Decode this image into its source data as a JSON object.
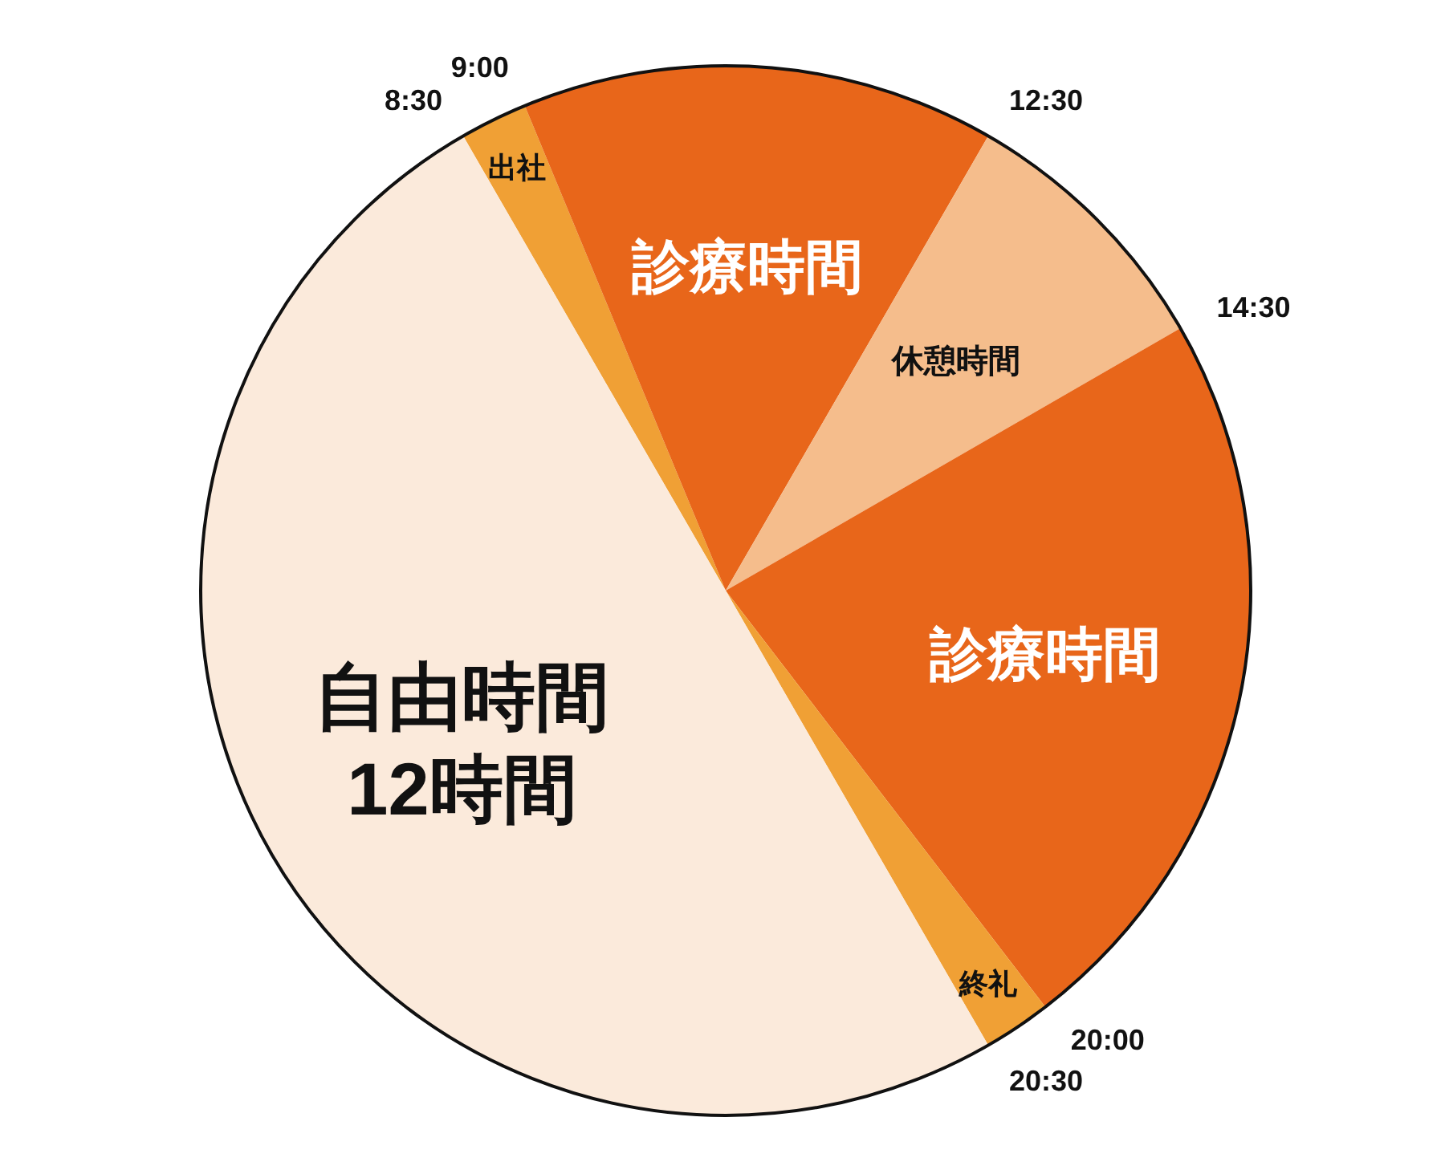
{
  "chart_data": {
    "type": "pie",
    "categories": [
      "出社",
      "診療時間",
      "休憩時間",
      "診療時間",
      "終礼",
      "自由時間\n12時間"
    ],
    "values": [
      0.5,
      3.5,
      2,
      5.5,
      0.5,
      12
    ],
    "colors": [
      "#f0a035",
      "#e8661a",
      "#f5bd8c",
      "#e8661a",
      "#f0a035",
      "#fbeadb"
    ],
    "annotations": [
      "8:30",
      "9:00",
      "12:30",
      "14:30",
      "20:00",
      "20:30"
    ]
  }
}
